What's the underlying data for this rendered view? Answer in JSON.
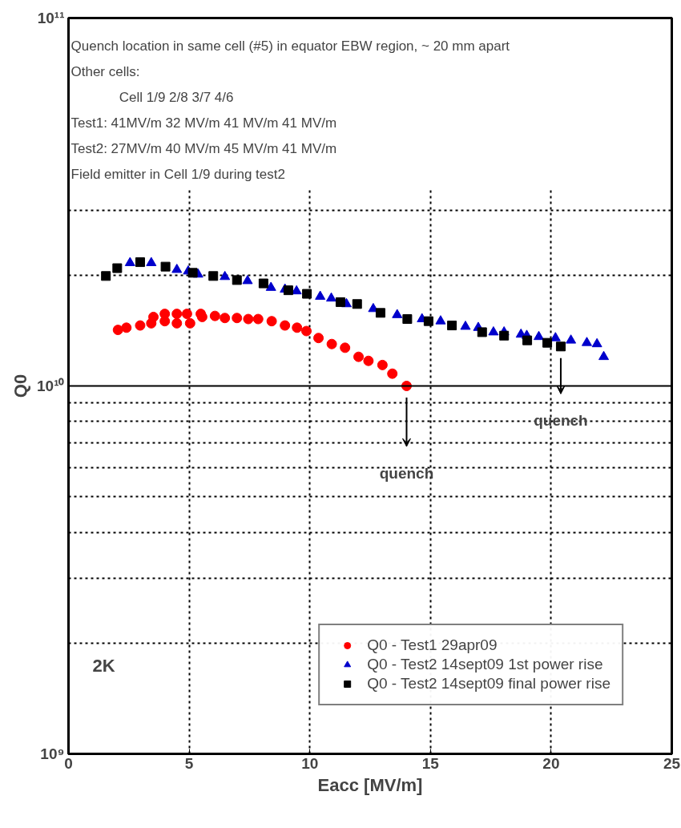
{
  "chart_data": {
    "type": "scatter",
    "xlabel": "Eacc [MV/m]",
    "ylabel": "Q0",
    "xlim": [
      0,
      25
    ],
    "xticks": [
      0,
      5,
      10,
      15,
      20,
      25
    ],
    "ylim": [
      1000000000.0,
      100000000000.0
    ],
    "yticks": [
      {
        "value": 1000000000.0,
        "label": "10⁹"
      },
      {
        "value": 10000000000.0,
        "label": "10¹⁰"
      },
      {
        "value": 100000000000.0,
        "label": "10¹¹"
      }
    ],
    "log": "y",
    "grid": true,
    "ref_lines": [
      {
        "axis": "y",
        "value": 10000000000.0,
        "color": "#000000",
        "line_style": "solid"
      }
    ],
    "legend": "bottom right",
    "series": [
      {
        "name": "Q0 - Test1 29apr09",
        "color": "#ff0000",
        "marker": "circle",
        "x": [
          2.05,
          2.4,
          2.97,
          3.43,
          3.52,
          3.99,
          3.99,
          4.49,
          4.49,
          4.91,
          5.04,
          5.48,
          5.54,
          6.07,
          6.48,
          6.98,
          7.45,
          7.86,
          8.42,
          8.97,
          9.47,
          9.86,
          10.36,
          10.91,
          11.46,
          12.02,
          12.43,
          13.01,
          13.42,
          14.01
        ],
        "values": [
          14200000000.0,
          14400000000.0,
          14600000000.0,
          14800000000.0,
          15400000000.0,
          15700000000.0,
          15000000000.0,
          15700000000.0,
          14800000000.0,
          15700000000.0,
          14800000000.0,
          15700000000.0,
          15400000000.0,
          15500000000.0,
          15300000000.0,
          15300000000.0,
          15200000000.0,
          15200000000.0,
          15000000000.0,
          14600000000.0,
          14400000000.0,
          14100000000.0,
          13500000000.0,
          13000000000.0,
          12700000000.0,
          12000000000.0,
          11700000000.0,
          11400000000.0,
          10800000000.0,
          10000000000.0
        ]
      },
      {
        "name": "Q0 - Test2 14sept09 1st power rise",
        "color": "#0000cc",
        "marker": "triangle",
        "x": [
          2.55,
          3.43,
          4.49,
          4.96,
          5.37,
          6.48,
          7.42,
          8.39,
          8.97,
          9.45,
          10.43,
          10.89,
          11.52,
          12.63,
          13.62,
          14.65,
          15.42,
          16.45,
          16.98,
          17.61,
          18.05,
          18.75,
          18.99,
          19.49,
          20.18,
          20.82,
          21.48,
          21.9,
          22.18
        ],
        "values": [
          21600000000.0,
          21600000000.0,
          20700000000.0,
          20500000000.0,
          20100000000.0,
          19800000000.0,
          19300000000.0,
          18500000000.0,
          18300000000.0,
          18100000000.0,
          17500000000.0,
          17300000000.0,
          16700000000.0,
          16200000000.0,
          15600000000.0,
          15200000000.0,
          15000000000.0,
          14500000000.0,
          14400000000.0,
          14000000000.0,
          14000000000.0,
          13800000000.0,
          13700000000.0,
          13600000000.0,
          13500000000.0,
          13300000000.0,
          13100000000.0,
          13000000000.0,
          12000000000.0
        ]
      },
      {
        "name": "Q0 - Test2 14sept09 final power rise",
        "color": "#000000",
        "marker": "square",
        "x": [
          1.55,
          2.02,
          2.97,
          4.02,
          5.15,
          6.0,
          6.98,
          8.08,
          9.11,
          9.88,
          11.27,
          11.96,
          12.93,
          14.04,
          14.92,
          15.89,
          17.14,
          18.05,
          19.01,
          19.84,
          20.4
        ],
        "values": [
          19900000000.0,
          20900000000.0,
          21700000000.0,
          21100000000.0,
          20300000000.0,
          19900000000.0,
          19400000000.0,
          19000000000.0,
          18200000000.0,
          17800000000.0,
          16900000000.0,
          16700000000.0,
          15800000000.0,
          15200000000.0,
          15000000000.0,
          14600000000.0,
          14000000000.0,
          13700000000.0,
          13300000000.0,
          13100000000.0,
          12800000000.0
        ]
      }
    ],
    "annotations": [
      "Quench location in same cell (#5) in equator EBW region, ~ 20 mm apart",
      "Other cells:",
      "Cell 1/9      2/8        3/7        4/6",
      "Test1:   41MV/m  32 MV/m  41 MV/m  41 MV/m",
      "Test2:   27MV/m  40 MV/m  45 MV/m  41 MV/m",
      "Field emitter in Cell 1/9 during test2",
      "quench",
      "quench",
      "2K"
    ]
  }
}
